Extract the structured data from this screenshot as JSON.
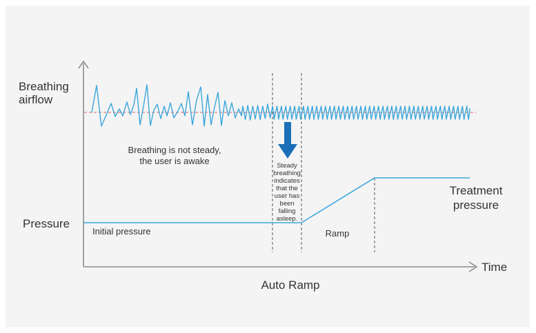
{
  "labels": {
    "breathing_airflow_line1": "Breathing",
    "breathing_airflow_line2": "airflow",
    "pressure": "Pressure",
    "time": "Time",
    "caption": "Auto Ramp",
    "not_steady_line1": "Breathing is not steady,",
    "not_steady_line2": "the user is awake",
    "steady_lines": [
      "Steady",
      "breathing",
      "indicates",
      "that the",
      "user has",
      "been",
      "falling",
      "asleep."
    ],
    "initial_pressure": "Initial pressure",
    "ramp": "Ramp",
    "treatment_line1": "Treatment",
    "treatment_line2": "pressure"
  },
  "colors": {
    "panel": "#f4f4f4",
    "axis": "#8c8c8c",
    "signal": "#3aa6db",
    "baseline": "#e06060",
    "arrow": "#1a6fb8",
    "text": "#333333",
    "dashed": "#555555"
  }
}
